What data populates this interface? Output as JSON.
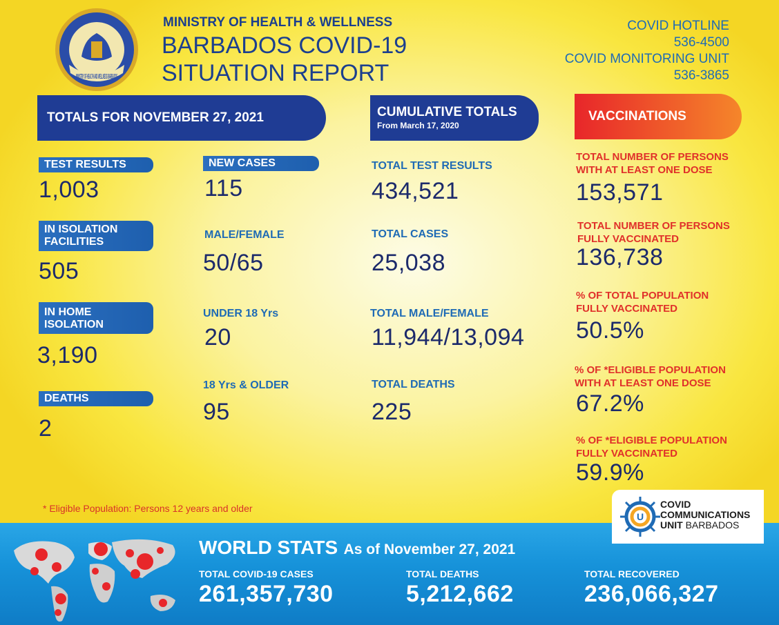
{
  "header": {
    "logo_text": "MINISTRY OF HEALTH AND WELLNESS BARBADOS",
    "ministry": "MINISTRY OF HEALTH & WELLNESS",
    "title_line1": "BARBADOS COVID-19",
    "title_line2": "SITUATION REPORT",
    "hotline_label": "COVID HOTLINE",
    "hotline_number": "536-4500",
    "monitoring_label": "COVID MONITORING UNIT",
    "monitoring_number": "536-3865"
  },
  "totals": {
    "banner": "TOTALS FOR NOVEMBER 27, 2021",
    "test_results_label": "TEST RESULTS",
    "test_results_value": "1,003",
    "isolation_label_1": "IN ISOLATION",
    "isolation_label_2": "FACILITIES",
    "isolation_value": "505",
    "home_label_1": "IN HOME",
    "home_label_2": "ISOLATION",
    "home_value": "3,190",
    "deaths_label": "DEATHS",
    "deaths_value": "2",
    "new_cases_label": "NEW CASES",
    "new_cases_value": "115",
    "male_female_label": "MALE/FEMALE",
    "male_female_value": "50/65",
    "under18_label": "UNDER 18 Yrs",
    "under18_value": "20",
    "over18_label": "18 Yrs & OLDER",
    "over18_value": "95"
  },
  "cumulative": {
    "banner": "CUMULATIVE TOTALS",
    "banner_sub": "From March 17, 2020",
    "test_results_label": "TOTAL TEST RESULTS",
    "test_results_value": "434,521",
    "cases_label": "TOTAL CASES",
    "cases_value": "25,038",
    "male_female_label": "TOTAL MALE/FEMALE",
    "male_female_value": "11,944/13,094",
    "deaths_label": "TOTAL DEATHS",
    "deaths_value": "225"
  },
  "vaccinations": {
    "banner": "VACCINATIONS",
    "one_dose_label_1": "TOTAL NUMBER OF PERSONS",
    "one_dose_label_2": "WITH AT LEAST ONE DOSE",
    "one_dose_value": "153,571",
    "fully_label_1": "TOTAL NUMBER OF PERSONS",
    "fully_label_2": "FULLY VACCINATED",
    "fully_value": "136,738",
    "pct_total_label_1": "% OF TOTAL POPULATION",
    "pct_total_label_2": "FULLY VACCINATED",
    "pct_total_value": "50.5%",
    "pct_eligible_one_label_1": "% OF *ELIGIBLE POPULATION",
    "pct_eligible_one_label_2": "WITH AT LEAST ONE DOSE",
    "pct_eligible_one_value": "67.2%",
    "pct_eligible_full_label_1": "% OF *ELIGIBLE POPULATION",
    "pct_eligible_full_label_2": "FULLY VACCINATED",
    "pct_eligible_full_value": "59.9%"
  },
  "footnote": "* Eligible Population: Persons 12 years and older",
  "ccu_logo": {
    "line1": "COVID",
    "line2": "COMMUNICATIONS",
    "line3_bold": "UNIT",
    "line3_rest": "BARBADOS"
  },
  "world": {
    "title": "WORLD STATS",
    "as_of": "As of November 27, 2021",
    "cases_label": "TOTAL COVID-19 CASES",
    "cases_value": "261,357,730",
    "deaths_label": "TOTAL DEATHS",
    "deaths_value": "5,212,662",
    "recovered_label": "TOTAL RECOVERED",
    "recovered_value": "236,066,327"
  },
  "colors": {
    "navy": "#1c2a6b",
    "blue": "#1f6bb5",
    "red": "#e0302a",
    "yellow": "#f9e640",
    "vacc_banner_start": "#e8262a",
    "vacc_banner_end": "#f5862a"
  }
}
